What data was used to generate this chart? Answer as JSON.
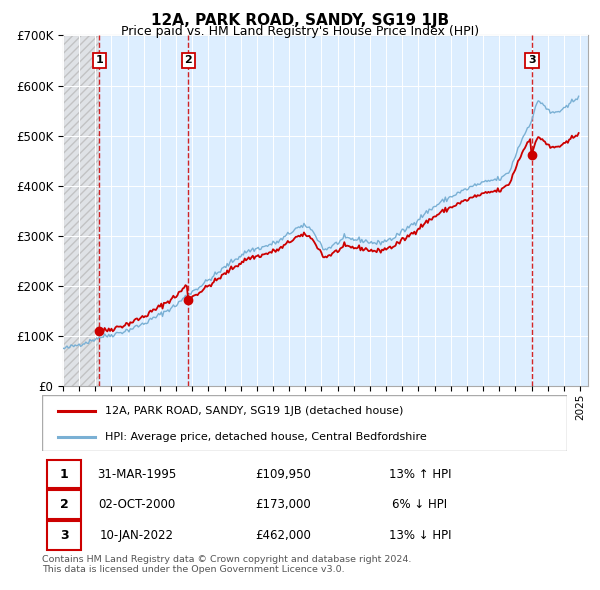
{
  "title": "12A, PARK ROAD, SANDY, SG19 1JB",
  "subtitle": "Price paid vs. HM Land Registry's House Price Index (HPI)",
  "ylim": [
    0,
    700000
  ],
  "yticks": [
    0,
    100000,
    200000,
    300000,
    400000,
    500000,
    600000,
    700000
  ],
  "ytick_labels": [
    "£0",
    "£100K",
    "£200K",
    "£300K",
    "£400K",
    "£500K",
    "£600K",
    "£700K"
  ],
  "price_paid": [
    {
      "date": "1995-03-31",
      "price": 109950,
      "label": "1"
    },
    {
      "date": "2000-10-02",
      "price": 173000,
      "label": "2"
    },
    {
      "date": "2022-01-10",
      "price": 462000,
      "label": "3"
    }
  ],
  "transaction_annotations": [
    {
      "num": "1",
      "date": "31-MAR-1995",
      "price": "£109,950",
      "hpi": "13% ↑ HPI"
    },
    {
      "num": "2",
      "date": "02-OCT-2000",
      "price": "£173,000",
      "hpi": "6% ↓ HPI"
    },
    {
      "num": "3",
      "date": "10-JAN-2022",
      "price": "£462,000",
      "hpi": "13% ↓ HPI"
    }
  ],
  "legend_entries": [
    {
      "label": "12A, PARK ROAD, SANDY, SG19 1JB (detached house)",
      "color": "#cc0000",
      "lw": 2
    },
    {
      "label": "HPI: Average price, detached house, Central Bedfordshire",
      "color": "#7ab0d4",
      "lw": 2
    }
  ],
  "footer": [
    "Contains HM Land Registry data © Crown copyright and database right 2024.",
    "This data is licensed under the Open Government Licence v3.0."
  ],
  "hpi_line_color": "#7ab0d4",
  "price_line_color": "#cc0000",
  "vline_color": "#cc0000",
  "x_start_year": 1993,
  "x_end_year": 2025
}
